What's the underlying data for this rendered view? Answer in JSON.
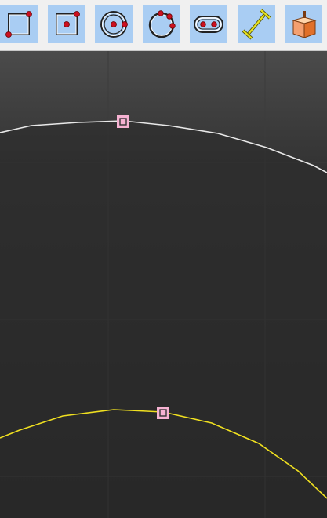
{
  "toolbar": {
    "tools": [
      {
        "id": "rectangle",
        "icon": "rectangle-corner-points-icon"
      },
      {
        "id": "centered-rectangle",
        "icon": "centered-rectangle-icon"
      },
      {
        "id": "circle-center",
        "icon": "circle-center-point-icon"
      },
      {
        "id": "circle-three-point",
        "icon": "circle-three-points-icon"
      },
      {
        "id": "slot",
        "icon": "slot-icon"
      },
      {
        "id": "constraint-distance",
        "icon": "dimension-constraint-icon"
      },
      {
        "id": "part-design",
        "icon": "orange-cube-icon"
      }
    ]
  },
  "viewport": {
    "background_top": "#4a4a4a",
    "background_bottom": "#242424",
    "curve_white_color": "#e8e8e8",
    "curve_yellow_color": "#f0e020",
    "marker_color": "#f6b2d2"
  }
}
